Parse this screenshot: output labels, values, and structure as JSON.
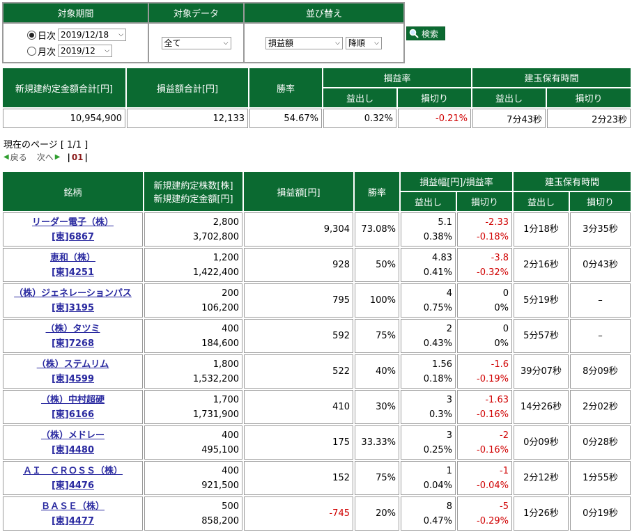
{
  "filter": {
    "headers": [
      "対象期間",
      "対象データ",
      "並び替え"
    ],
    "daily_label": "日次",
    "daily_value": "2019/12/18",
    "monthly_label": "月次",
    "monthly_value": "2019/12",
    "data_value": "全て",
    "sort_value": "損益額",
    "order_value": "降順",
    "search_label": "検索"
  },
  "summary": {
    "headers": {
      "total_amount": "新規建約定金額合計[円]",
      "total_pl": "損益額合計[円]",
      "win_rate": "勝率",
      "pl_rate": "損益率",
      "hold_time": "建玉保有時間",
      "profit": "益出し",
      "loss": "損切り"
    },
    "values": {
      "total_amount": "10,954,900",
      "total_pl": "12,133",
      "win_rate": "54.67%",
      "rate_profit": "0.32%",
      "rate_loss": "-0.21%",
      "hold_profit": "7分43秒",
      "hold_loss": "2分23秒"
    }
  },
  "pagination": {
    "current": "現在のページ [ 1/1 ]",
    "prev": "戻る",
    "next": "次へ",
    "pages_prefix": "|",
    "page": "01",
    "pages_suffix": "|"
  },
  "table": {
    "headers": {
      "name": "銘柄",
      "shares": "新規建約定株数[株]",
      "amount": "新規建約定金額[円]",
      "pl": "損益額[円]",
      "win_rate": "勝率",
      "range": "損益幅[円]/損益率",
      "hold": "建玉保有時間",
      "profit": "益出し",
      "loss": "損切り"
    },
    "rows": [
      {
        "name": "リーダー電子（株）",
        "code": "[東]6867",
        "shares": "2,800",
        "amount": "3,702,800",
        "pl": "9,304",
        "win": "73.08%",
        "p_width": "5.1",
        "p_rate": "0.38%",
        "l_width": "-2.33",
        "l_rate": "-0.18%",
        "h_profit": "1分18秒",
        "h_loss": "3分35秒"
      },
      {
        "name": "恵和（株）",
        "code": "[東]4251",
        "shares": "1,200",
        "amount": "1,422,400",
        "pl": "928",
        "win": "50%",
        "p_width": "4.83",
        "p_rate": "0.41%",
        "l_width": "-3.8",
        "l_rate": "-0.32%",
        "h_profit": "2分16秒",
        "h_loss": "0分43秒"
      },
      {
        "name": "（株）ジェネレーションパス",
        "code": "[東]3195",
        "shares": "200",
        "amount": "106,200",
        "pl": "795",
        "win": "100%",
        "p_width": "4",
        "p_rate": "0.75%",
        "l_width": "0",
        "l_rate": "0%",
        "h_profit": "5分19秒",
        "h_loss": "–"
      },
      {
        "name": "（株）タツミ",
        "code": "[東]7268",
        "shares": "400",
        "amount": "184,600",
        "pl": "592",
        "win": "75%",
        "p_width": "2",
        "p_rate": "0.43%",
        "l_width": "0",
        "l_rate": "0%",
        "h_profit": "5分57秒",
        "h_loss": "–"
      },
      {
        "name": "（株）ステムリム",
        "code": "[東]4599",
        "shares": "1,800",
        "amount": "1,532,200",
        "pl": "522",
        "win": "40%",
        "p_width": "1.56",
        "p_rate": "0.18%",
        "l_width": "-1.6",
        "l_rate": "-0.19%",
        "h_profit": "39分07秒",
        "h_loss": "8分09秒"
      },
      {
        "name": "（株）中村超硬",
        "code": "[東]6166",
        "shares": "1,700",
        "amount": "1,731,900",
        "pl": "410",
        "win": "30%",
        "p_width": "3",
        "p_rate": "0.3%",
        "l_width": "-1.63",
        "l_rate": "-0.16%",
        "h_profit": "14分26秒",
        "h_loss": "2分02秒"
      },
      {
        "name": "（株）メドレー",
        "code": "[東]4480",
        "shares": "400",
        "amount": "495,100",
        "pl": "175",
        "win": "33.33%",
        "p_width": "3",
        "p_rate": "0.25%",
        "l_width": "-2",
        "l_rate": "-0.16%",
        "h_profit": "0分09秒",
        "h_loss": "0分28秒"
      },
      {
        "name": "ＡＩ　ＣＲＯＳＳ（株）",
        "code": "[東]4476",
        "shares": "400",
        "amount": "921,500",
        "pl": "152",
        "win": "75%",
        "p_width": "1",
        "p_rate": "0.04%",
        "l_width": "-1",
        "l_rate": "-0.04%",
        "h_profit": "2分12秒",
        "h_loss": "1分55秒"
      },
      {
        "name": "ＢＡＳＥ（株）",
        "code": "[東]4477",
        "shares": "500",
        "amount": "858,200",
        "pl": "-745",
        "win": "20%",
        "p_width": "8",
        "p_rate": "0.47%",
        "l_width": "-5",
        "l_rate": "-0.29%",
        "h_profit": "1分26秒",
        "h_loss": "0分19秒"
      }
    ]
  },
  "colors": {
    "header_bg": "#0b6a31",
    "negative": "#d00000",
    "link": "#2a2aa0"
  }
}
